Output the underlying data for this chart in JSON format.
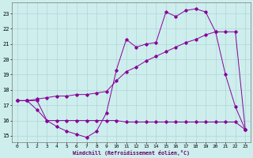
{
  "xlabel": "Windchill (Refroidissement éolien,°C)",
  "ylim": [
    14.6,
    23.7
  ],
  "xlim": [
    -0.5,
    23.5
  ],
  "yticks": [
    15,
    16,
    17,
    18,
    19,
    20,
    21,
    22,
    23
  ],
  "xticks": [
    0,
    1,
    2,
    3,
    4,
    5,
    6,
    7,
    8,
    9,
    10,
    11,
    12,
    13,
    14,
    15,
    16,
    17,
    18,
    19,
    20,
    21,
    22,
    23
  ],
  "bg_color": "#cdeeed",
  "line_color": "#880099",
  "grid_color": "#aacfcf",
  "line1_x": [
    0,
    1,
    2,
    3,
    4,
    5,
    6,
    7,
    8,
    9,
    10,
    11,
    12,
    13,
    14,
    15,
    16,
    17,
    18,
    19,
    20,
    21,
    22,
    23
  ],
  "line1_y": [
    17.3,
    17.3,
    16.7,
    16.0,
    15.6,
    15.3,
    15.1,
    14.9,
    15.3,
    16.5,
    19.3,
    21.3,
    20.8,
    21.0,
    21.1,
    23.1,
    22.8,
    23.2,
    23.3,
    23.1,
    21.8,
    19.0,
    16.9,
    15.4
  ],
  "line2_x": [
    0,
    1,
    2,
    3,
    4,
    5,
    6,
    7,
    8,
    9,
    10,
    11,
    12,
    13,
    14,
    15,
    16,
    17,
    18,
    19,
    20,
    21,
    22,
    23
  ],
  "line2_y": [
    17.3,
    17.3,
    17.4,
    17.5,
    17.6,
    17.6,
    17.7,
    17.7,
    17.8,
    17.9,
    18.6,
    19.2,
    19.5,
    19.9,
    20.2,
    20.5,
    20.8,
    21.1,
    21.3,
    21.6,
    21.8,
    21.8,
    21.8,
    15.4
  ],
  "line3_x": [
    0,
    1,
    2,
    3,
    4,
    5,
    6,
    7,
    8,
    9,
    10,
    11,
    12,
    13,
    14,
    15,
    16,
    17,
    18,
    19,
    20,
    21,
    22,
    23
  ],
  "line3_y": [
    17.3,
    17.3,
    17.3,
    16.0,
    16.0,
    16.0,
    16.0,
    16.0,
    16.0,
    16.0,
    16.0,
    15.9,
    15.9,
    15.9,
    15.9,
    15.9,
    15.9,
    15.9,
    15.9,
    15.9,
    15.9,
    15.9,
    15.9,
    15.4
  ]
}
